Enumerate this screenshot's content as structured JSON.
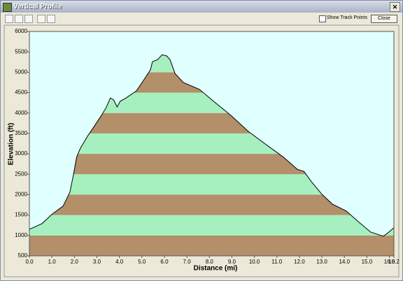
{
  "window": {
    "title": "Vertical Profile",
    "checkbox_label": "Show Track Points",
    "close_button": "Close"
  },
  "chart_data": {
    "type": "area",
    "x_label": "Distance   (mi)",
    "y_label": "Elevation (ft)",
    "x": [
      0,
      0.56,
      1.03,
      1.5,
      1.8,
      1.96,
      2.1,
      2.27,
      2.58,
      2.9,
      3.2,
      3.4,
      3.6,
      3.75,
      3.9,
      4.04,
      4.3,
      4.75,
      5.07,
      5.38,
      5.47,
      5.7,
      5.9,
      6.1,
      6.25,
      6.47,
      6.84,
      7.56,
      8.18,
      8.96,
      9.73,
      10.66,
      11.29,
      11.91,
      12.2,
      12.53,
      13.0,
      13.46,
      14.08,
      14.55,
      15.17,
      15.73,
      15.95,
      16.2
    ],
    "values": [
      1150,
      1290,
      1530,
      1720,
      2060,
      2490,
      2920,
      3140,
      3430,
      3690,
      3940,
      4120,
      4370,
      4320,
      4150,
      4290,
      4370,
      4540,
      4800,
      5060,
      5260,
      5310,
      5430,
      5400,
      5310,
      4970,
      4750,
      4580,
      4290,
      3940,
      3550,
      3170,
      2920,
      2620,
      2570,
      2320,
      2010,
      1770,
      1600,
      1370,
      1080,
      980,
      1070,
      1190
    ],
    "xlim": [
      0,
      16.2
    ],
    "ylim": [
      500,
      6000
    ],
    "xticks": [
      {
        "value": 0,
        "label": "0.0"
      },
      {
        "value": 1,
        "label": "1.0"
      },
      {
        "value": 2,
        "label": "2.0"
      },
      {
        "value": 3,
        "label": "3.0"
      },
      {
        "value": 4,
        "label": "4.0"
      },
      {
        "value": 5,
        "label": "5.0"
      },
      {
        "value": 6,
        "label": "6.0"
      },
      {
        "value": 7,
        "label": "7.0"
      },
      {
        "value": 8,
        "label": "8.0"
      },
      {
        "value": 9,
        "label": "9.0"
      },
      {
        "value": 10,
        "label": "10.0"
      },
      {
        "value": 11,
        "label": "11.0"
      },
      {
        "value": 12,
        "label": "12.0"
      },
      {
        "value": 13,
        "label": "13.0"
      },
      {
        "value": 14,
        "label": "14.0"
      },
      {
        "value": 15,
        "label": "15.0"
      },
      {
        "value": 16,
        "label": "16.0"
      },
      {
        "value": 16.2,
        "label": "16.2"
      }
    ],
    "yticks": [
      500,
      1000,
      1500,
      2000,
      2500,
      3000,
      3500,
      4000,
      4500,
      5000,
      5500,
      6000
    ],
    "band_colors": [
      "#b38f6a",
      "#a6f0bf"
    ],
    "background": "#e0ffff",
    "line_color": "#000000"
  }
}
